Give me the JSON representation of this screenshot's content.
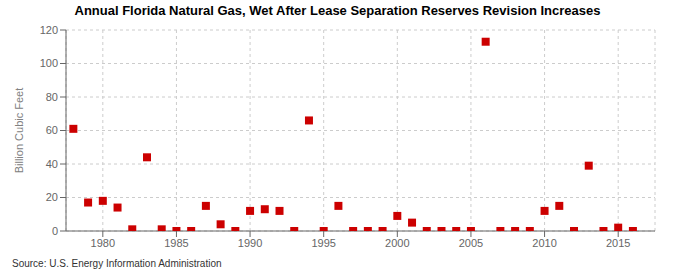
{
  "chart_data": {
    "type": "scatter",
    "title": "Annual Florida Natural Gas, Wet After Lease Separation Reserves Revision Increases",
    "ylabel": "Billion Cubic Feet",
    "annotation": "Source: U.S. Energy Information Administration",
    "x": [
      1978,
      1979,
      1980,
      1981,
      1982,
      1983,
      1984,
      1985,
      1986,
      1987,
      1988,
      1989,
      1990,
      1991,
      1992,
      1993,
      1994,
      1995,
      1996,
      1997,
      1998,
      1999,
      2000,
      2001,
      2002,
      2003,
      2004,
      2005,
      2006,
      2007,
      2008,
      2009,
      2010,
      2011,
      2012,
      2013,
      2014,
      2015,
      2016
    ],
    "values": [
      61,
      17,
      18,
      14,
      1,
      44,
      1,
      0,
      0,
      15,
      4,
      0,
      12,
      13,
      12,
      0,
      66,
      0,
      15,
      0,
      0,
      0,
      9,
      5,
      0,
      0,
      0,
      0,
      113,
      0,
      0,
      0,
      12,
      15,
      0,
      39,
      0,
      2,
      0
    ],
    "color": "#cc0000",
    "marker": "square",
    "xlim": [
      1977.5,
      2017.5
    ],
    "ylim": [
      0,
      120
    ],
    "xticks": [
      1980,
      1985,
      1990,
      1995,
      2000,
      2005,
      2010,
      2015
    ],
    "yticks": [
      0,
      20,
      40,
      60,
      80,
      100,
      120
    ],
    "grid": true
  }
}
